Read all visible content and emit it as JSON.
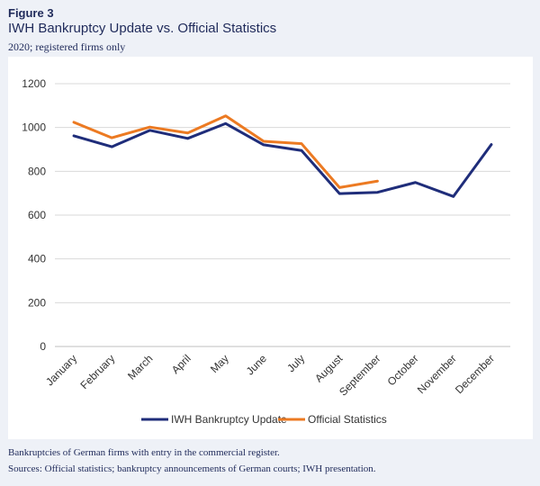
{
  "figure_label": "Figure 3",
  "chart_data": {
    "type": "line",
    "title": "IWH Bankruptcy Update vs. Official Statistics",
    "subtitle": "2020; registered firms only",
    "categories": [
      "January",
      "February",
      "March",
      "April",
      "May",
      "June",
      "July",
      "August",
      "September",
      "October",
      "November",
      "December"
    ],
    "series": [
      {
        "name": "IWH Bankruptcy Update",
        "color": "#1f2d7a",
        "values": [
          962,
          912,
          987,
          950,
          1018,
          921,
          895,
          698,
          704,
          749,
          685,
          922
        ]
      },
      {
        "name": "Official Statistics",
        "color": "#ec7a22",
        "values": [
          1024,
          953,
          1002,
          975,
          1053,
          937,
          926,
          726,
          755,
          null,
          null,
          null
        ]
      }
    ],
    "ylim": [
      0,
      1200
    ],
    "yticks": [
      0,
      200,
      400,
      600,
      800,
      1000,
      1200
    ],
    "xlabel": "",
    "ylabel": "",
    "grid": "horizontal",
    "legend": "bottom"
  },
  "notes": {
    "line1": "Bankruptcies of German firms with entry in the commercial register.",
    "line2": "Sources: Official statistics; bankruptcy announcements of German courts; IWH presentation."
  }
}
